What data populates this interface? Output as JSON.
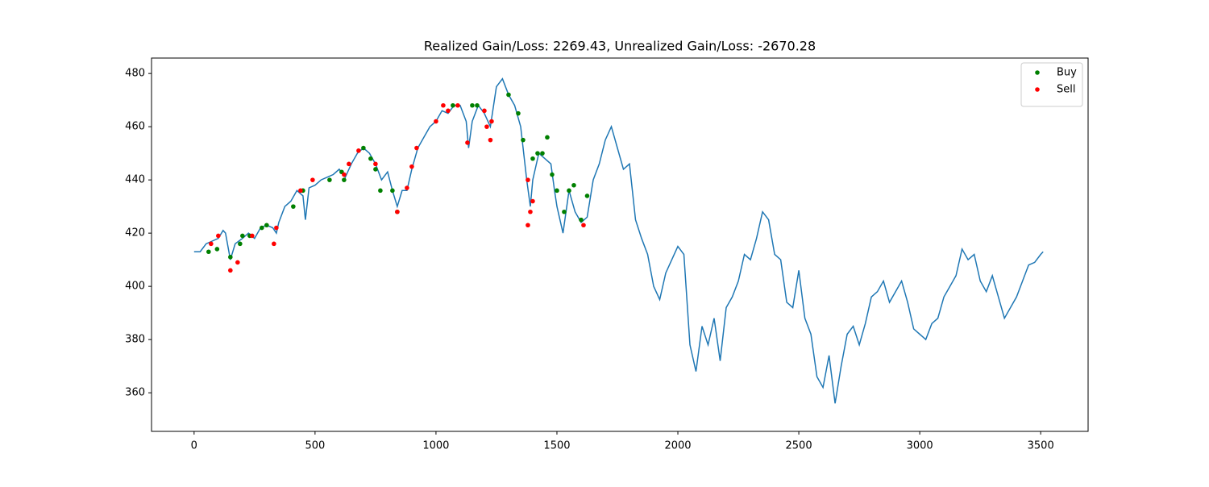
{
  "chart_data": {
    "type": "line",
    "title": "Realized Gain/Loss: 2269.43, Unrealized Gain/Loss: -2670.28",
    "color": "#1f77b4",
    "x": [
      0,
      25,
      50,
      75,
      100,
      120,
      130,
      150,
      170,
      200,
      225,
      250,
      275,
      300,
      325,
      340,
      350,
      375,
      400,
      425,
      450,
      460,
      475,
      500,
      525,
      550,
      575,
      600,
      625,
      650,
      675,
      700,
      725,
      750,
      775,
      800,
      820,
      840,
      860,
      880,
      900,
      925,
      950,
      975,
      1000,
      1025,
      1050,
      1075,
      1100,
      1125,
      1135,
      1150,
      1175,
      1200,
      1225,
      1250,
      1275,
      1300,
      1325,
      1350,
      1375,
      1390,
      1400,
      1425,
      1450,
      1475,
      1490,
      1500,
      1525,
      1550,
      1575,
      1600,
      1625,
      1650,
      1675,
      1700,
      1725,
      1750,
      1775,
      1800,
      1825,
      1850,
      1875,
      1900,
      1925,
      1950,
      1975,
      2000,
      2025,
      2050,
      2075,
      2100,
      2125,
      2150,
      2175,
      2200,
      2225,
      2250,
      2275,
      2300,
      2325,
      2350,
      2375,
      2400,
      2425,
      2450,
      2475,
      2500,
      2525,
      2550,
      2575,
      2600,
      2625,
      2650,
      2675,
      2700,
      2725,
      2750,
      2775,
      2800,
      2825,
      2850,
      2875,
      2900,
      2925,
      2950,
      2975,
      3000,
      3025,
      3050,
      3075,
      3100,
      3125,
      3150,
      3175,
      3200,
      3225,
      3250,
      3275,
      3300,
      3325,
      3350,
      3375,
      3400,
      3425,
      3450,
      3475,
      3500,
      3510
    ],
    "values": [
      413,
      413,
      416,
      417,
      418,
      421,
      420,
      410,
      416,
      418,
      420,
      418,
      422,
      423,
      422,
      420,
      424,
      430,
      432,
      436,
      434,
      425,
      437,
      438,
      440,
      441,
      442,
      444,
      441,
      446,
      450,
      452,
      450,
      446,
      440,
      443,
      436,
      430,
      436,
      436,
      444,
      452,
      456,
      460,
      462,
      466,
      465,
      468,
      468,
      462,
      452,
      462,
      468,
      465,
      460,
      475,
      478,
      472,
      468,
      460,
      440,
      430,
      440,
      450,
      448,
      446,
      436,
      430,
      420,
      436,
      428,
      424,
      426,
      440,
      446,
      455,
      460,
      452,
      444,
      446,
      425,
      418,
      412,
      400,
      395,
      405,
      410,
      415,
      412,
      378,
      368,
      385,
      378,
      388,
      372,
      392,
      396,
      402,
      412,
      410,
      418,
      428,
      425,
      412,
      410,
      394,
      392,
      406,
      388,
      382,
      366,
      362,
      374,
      356,
      370,
      382,
      385,
      378,
      386,
      396,
      398,
      402,
      394,
      398,
      402,
      394,
      384,
      382,
      380,
      386,
      388,
      396,
      400,
      404,
      414,
      410,
      412,
      402,
      398,
      404,
      396,
      388,
      392,
      396,
      402,
      408,
      409,
      412,
      413
    ],
    "scatter": [
      {
        "name": "Buy",
        "color": "green",
        "x": [
          60,
          95,
          150,
          190,
          200,
          230,
          280,
          300,
          410,
          450,
          560,
          610,
          620,
          700,
          730,
          750,
          770,
          820,
          840,
          1070,
          1150,
          1170,
          1300,
          1340,
          1360,
          1400,
          1420,
          1440,
          1460,
          1480,
          1500,
          1530,
          1550,
          1570,
          1600,
          1625
        ],
        "values": [
          413,
          414,
          411,
          416,
          419,
          419,
          422,
          423,
          430,
          436,
          440,
          443,
          440,
          452,
          448,
          444,
          436,
          436,
          428,
          468,
          468,
          468,
          472,
          465,
          455,
          448,
          450,
          450,
          456,
          442,
          436,
          428,
          436,
          438,
          425,
          434
        ]
      },
      {
        "name": "Sell",
        "color": "red",
        "x": [
          70,
          100,
          150,
          180,
          240,
          330,
          340,
          440,
          490,
          620,
          640,
          680,
          750,
          840,
          880,
          900,
          920,
          1000,
          1030,
          1050,
          1090,
          1130,
          1200,
          1210,
          1225,
          1230,
          1380,
          1390,
          1400,
          1380,
          1610
        ],
        "values": [
          416,
          419,
          406,
          409,
          419,
          416,
          422,
          436,
          440,
          442,
          446,
          451,
          446,
          428,
          437,
          445,
          452,
          462,
          468,
          466,
          468,
          454,
          466,
          460,
          455,
          462,
          440,
          428,
          432,
          423,
          423
        ]
      }
    ],
    "xlim": [
      -176,
      3696
    ],
    "ylim": [
      345.5,
      485.8
    ],
    "xticks": [
      0,
      500,
      1000,
      1500,
      2000,
      2500,
      3000,
      3500
    ],
    "yticks": [
      360,
      380,
      400,
      420,
      440,
      460,
      480
    ],
    "legend": "upper right"
  }
}
